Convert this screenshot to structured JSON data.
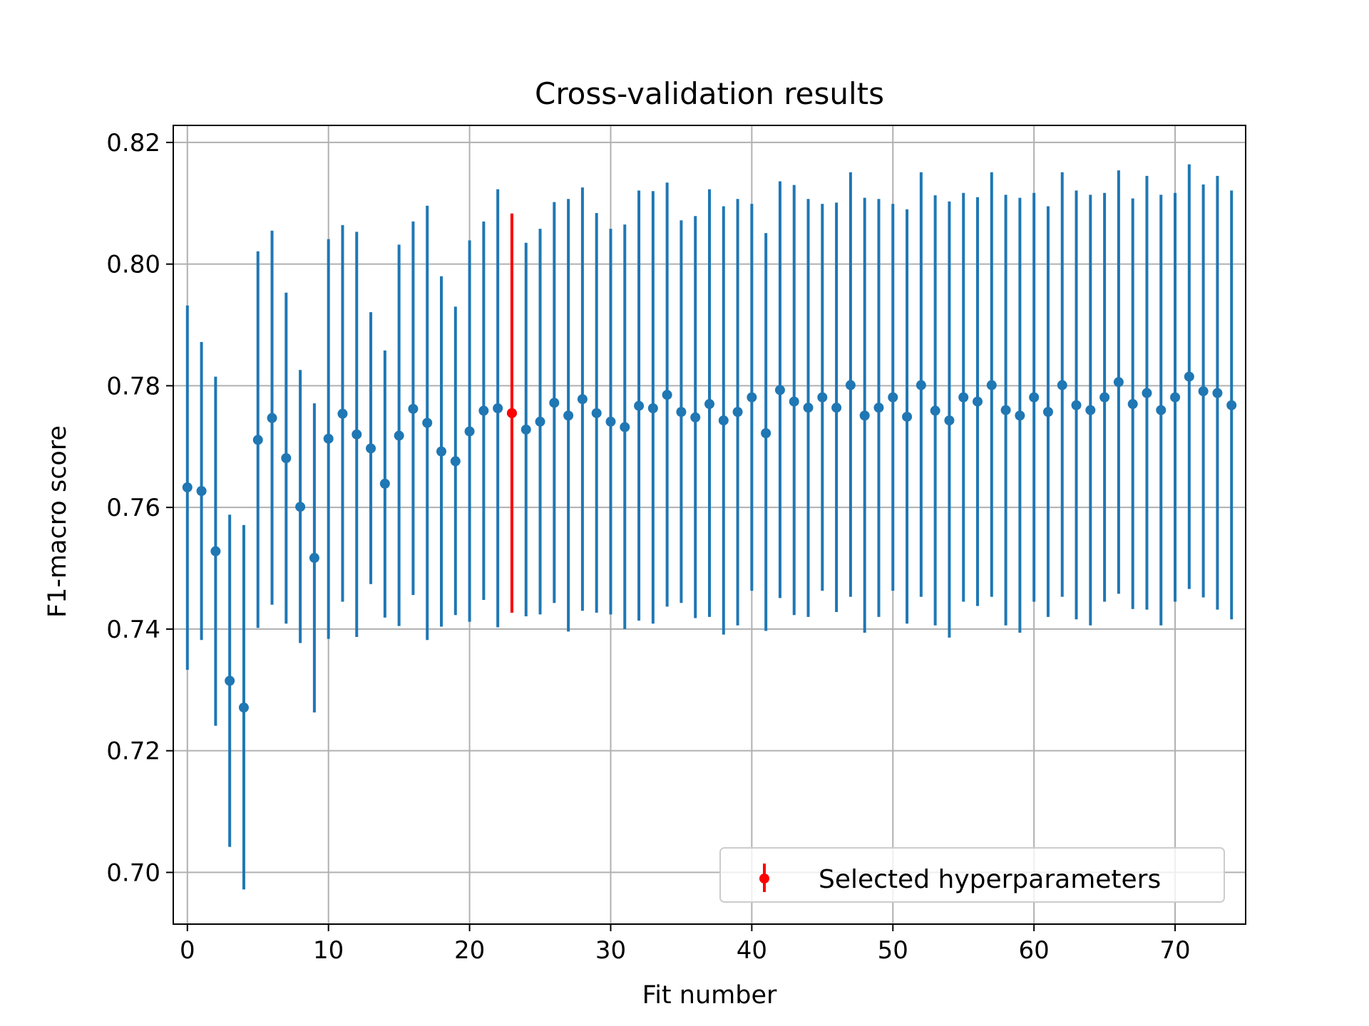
{
  "chart_data": {
    "type": "scatter",
    "title": "Cross-validation results",
    "xlabel": "Fit number",
    "ylabel": "F1-macro score",
    "xlim": [
      -1,
      75
    ],
    "ylim": [
      0.6915,
      0.8228
    ],
    "xticks": [
      0,
      10,
      20,
      30,
      40,
      50,
      60,
      70
    ],
    "yticks": [
      0.7,
      0.72,
      0.74,
      0.76,
      0.78,
      0.8,
      0.82
    ],
    "ytick_labels": [
      "0.70",
      "0.72",
      "0.74",
      "0.76",
      "0.78",
      "0.80",
      "0.82"
    ],
    "grid": true,
    "legend_position": "lower-right",
    "series": [
      {
        "color": "#1f77b4",
        "x": [
          0,
          1,
          2,
          3,
          4,
          5,
          6,
          7,
          8,
          9,
          10,
          11,
          12,
          13,
          14,
          15,
          16,
          17,
          18,
          19,
          20,
          21,
          22,
          23,
          24,
          25,
          26,
          27,
          28,
          29,
          30,
          31,
          32,
          33,
          34,
          35,
          36,
          37,
          38,
          39,
          40,
          41,
          42,
          43,
          44,
          45,
          46,
          47,
          48,
          49,
          50,
          51,
          52,
          53,
          54,
          55,
          56,
          57,
          58,
          59,
          60,
          61,
          62,
          63,
          64,
          65,
          66,
          67,
          68,
          69,
          70,
          71,
          72,
          73,
          74
        ],
        "mean": [
          0.7633,
          0.7627,
          0.7528,
          0.7315,
          0.7271,
          0.7711,
          0.7747,
          0.7681,
          0.7601,
          0.7517,
          0.7713,
          0.7754,
          0.772,
          0.7697,
          0.7639,
          0.7718,
          0.7762,
          0.7739,
          0.7692,
          0.7676,
          0.7725,
          0.7759,
          0.7763,
          0.7755,
          0.7728,
          0.7741,
          0.7772,
          0.7751,
          0.7778,
          0.7755,
          0.7741,
          0.7732,
          0.7767,
          0.7763,
          0.7785,
          0.7757,
          0.7748,
          0.777,
          0.7743,
          0.7757,
          0.7781,
          0.7722,
          0.7793,
          0.7774,
          0.7764,
          0.7781,
          0.7764,
          0.7801,
          0.7751,
          0.7764,
          0.7781,
          0.7749,
          0.7801,
          0.7759,
          0.7743,
          0.7781,
          0.7774,
          0.7801,
          0.776,
          0.7751,
          0.7781,
          0.7757,
          0.7801,
          0.7768,
          0.776,
          0.7781,
          0.7806,
          0.777,
          0.7788,
          0.776,
          0.7781,
          0.7815,
          0.7791,
          0.7788,
          0.7768
        ],
        "lower": [
          0.7333,
          0.7382,
          0.7241,
          0.7042,
          0.6972,
          0.7402,
          0.744,
          0.7409,
          0.7377,
          0.7263,
          0.7384,
          0.7445,
          0.7387,
          0.7474,
          0.7419,
          0.7405,
          0.7456,
          0.7382,
          0.7404,
          0.7423,
          0.7412,
          0.7448,
          0.7403,
          0.7427,
          0.7421,
          0.7424,
          0.7443,
          0.7396,
          0.743,
          0.7427,
          0.7424,
          0.74,
          0.7414,
          0.7409,
          0.7437,
          0.7443,
          0.7418,
          0.742,
          0.7391,
          0.7406,
          0.7463,
          0.7397,
          0.7451,
          0.7423,
          0.742,
          0.7463,
          0.7428,
          0.7453,
          0.7394,
          0.742,
          0.7463,
          0.7409,
          0.7453,
          0.7406,
          0.7386,
          0.7445,
          0.7438,
          0.7453,
          0.7406,
          0.7394,
          0.7445,
          0.742,
          0.7453,
          0.7416,
          0.7406,
          0.7445,
          0.7458,
          0.7433,
          0.7432,
          0.7406,
          0.7445,
          0.7466,
          0.7452,
          0.7432,
          0.7416
        ],
        "upper": [
          0.7932,
          0.7872,
          0.7815,
          0.7588,
          0.7571,
          0.8021,
          0.8055,
          0.7953,
          0.7826,
          0.7771,
          0.8041,
          0.8064,
          0.8053,
          0.7921,
          0.7858,
          0.8032,
          0.807,
          0.8096,
          0.798,
          0.793,
          0.8039,
          0.807,
          0.8123,
          0.8083,
          0.8035,
          0.8058,
          0.8102,
          0.8107,
          0.8126,
          0.8084,
          0.8058,
          0.8065,
          0.8121,
          0.812,
          0.8134,
          0.8072,
          0.8079,
          0.8123,
          0.8095,
          0.8107,
          0.8099,
          0.8051,
          0.8136,
          0.813,
          0.8107,
          0.8099,
          0.8101,
          0.8151,
          0.8109,
          0.8107,
          0.8099,
          0.809,
          0.8151,
          0.8113,
          0.8103,
          0.8117,
          0.811,
          0.8151,
          0.8114,
          0.8109,
          0.8117,
          0.8095,
          0.8151,
          0.8121,
          0.8114,
          0.8117,
          0.8154,
          0.8108,
          0.8145,
          0.8114,
          0.8117,
          0.8164,
          0.8131,
          0.8145,
          0.8121
        ]
      },
      {
        "name": "Selected hyperparameters",
        "color": "#ff0000",
        "x": [
          23
        ],
        "mean": [
          0.7755
        ],
        "lower": [
          0.7427
        ],
        "upper": [
          0.8083
        ]
      }
    ]
  }
}
